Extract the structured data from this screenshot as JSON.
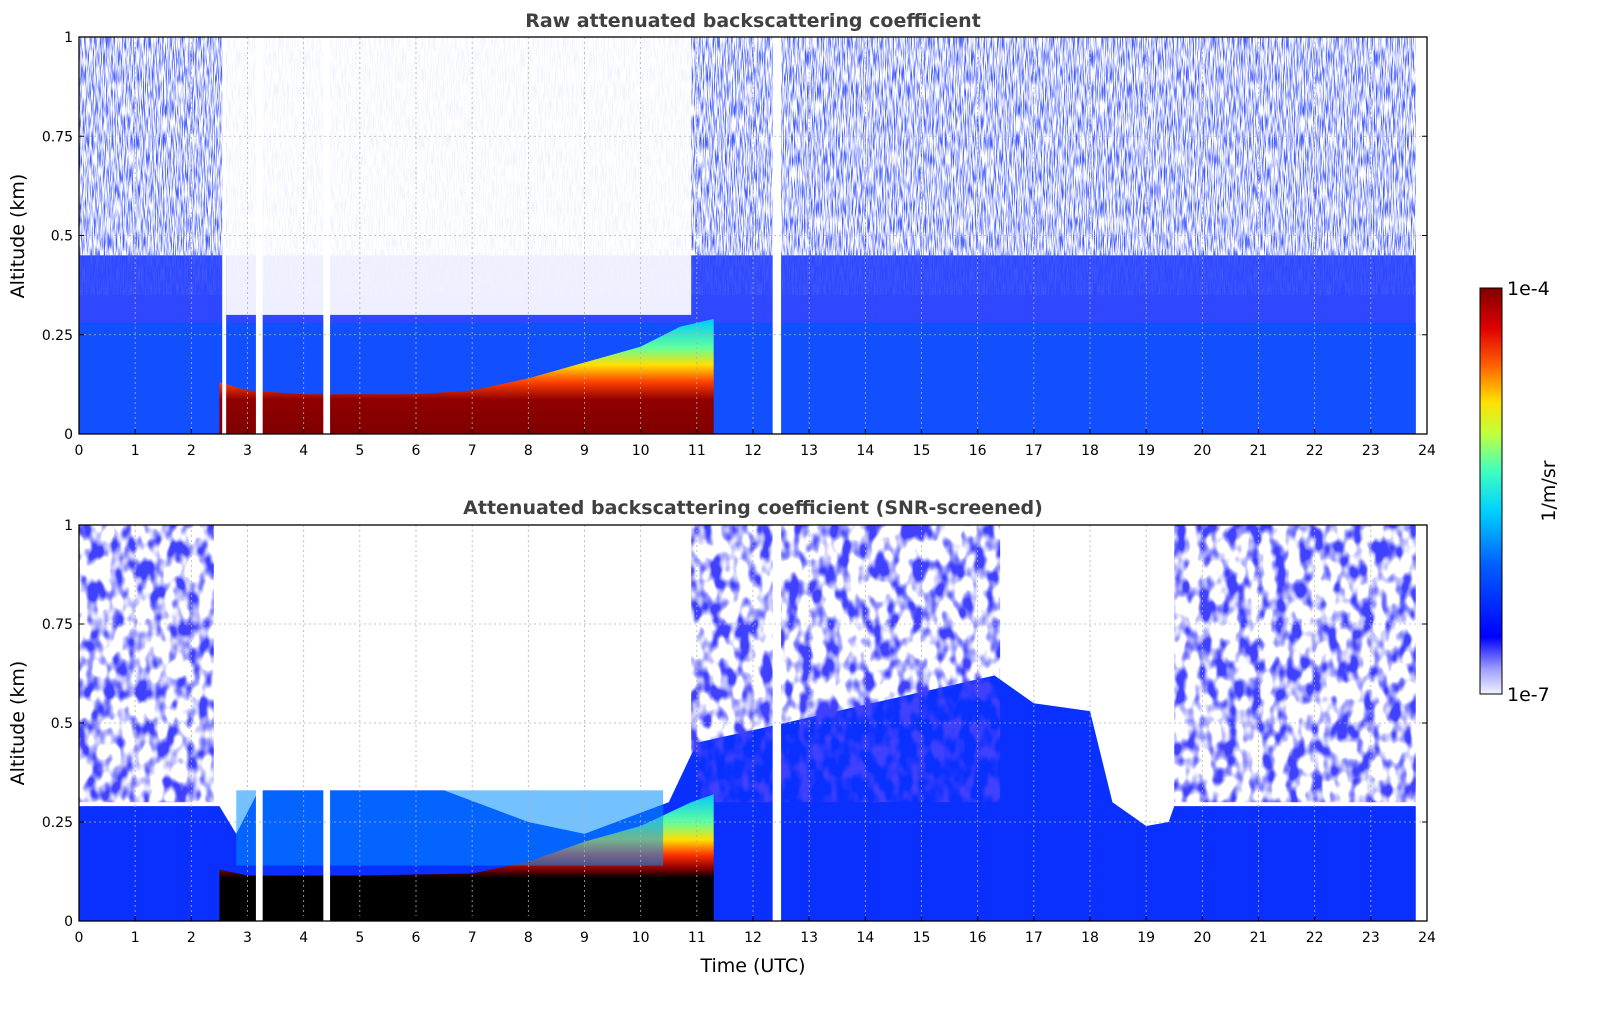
{
  "chart_data": [
    {
      "type": "heatmap",
      "title": "Raw attenuated backscattering coefficient",
      "xlabel": "",
      "ylabel": "Altitude (km)",
      "xlim": [
        0,
        24
      ],
      "ylim": [
        0,
        1
      ],
      "x_ticks": [
        "0",
        "1",
        "2",
        "3",
        "4",
        "5",
        "6",
        "7",
        "8",
        "9",
        "10",
        "11",
        "12",
        "13",
        "14",
        "15",
        "16",
        "17",
        "18",
        "19",
        "20",
        "21",
        "22",
        "23",
        "24"
      ],
      "y_ticks": [
        "0",
        "0.25",
        "0.5",
        "0.75",
        "1"
      ],
      "grid": true,
      "layer_top_km": [
        {
          "t": 2.5,
          "km": 0.13
        },
        {
          "t": 3.0,
          "km": 0.11
        },
        {
          "t": 4.0,
          "km": 0.1
        },
        {
          "t": 5.0,
          "km": 0.1
        },
        {
          "t": 6.0,
          "km": 0.1
        },
        {
          "t": 7.0,
          "km": 0.11
        },
        {
          "t": 8.0,
          "km": 0.14
        },
        {
          "t": 9.0,
          "km": 0.18
        },
        {
          "t": 10.0,
          "km": 0.22
        },
        {
          "t": 10.7,
          "km": 0.27
        },
        {
          "t": 11.3,
          "km": 0.29
        }
      ],
      "data_gaps_utc": [
        [
          2.55,
          2.62
        ],
        [
          3.15,
          3.27
        ],
        [
          4.35,
          4.47
        ],
        [
          12.35,
          12.5
        ]
      ]
    },
    {
      "type": "heatmap",
      "title": "Attenuated backscattering coefficient (SNR-screened)",
      "xlabel": "Time (UTC)",
      "ylabel": "Altitude (km)",
      "xlim": [
        0,
        24
      ],
      "ylim": [
        0,
        1
      ],
      "x_ticks": [
        "0",
        "1",
        "2",
        "3",
        "4",
        "5",
        "6",
        "7",
        "8",
        "9",
        "10",
        "11",
        "12",
        "13",
        "14",
        "15",
        "16",
        "17",
        "18",
        "19",
        "20",
        "21",
        "22",
        "23",
        "24"
      ],
      "y_ticks": [
        "0",
        "0.25",
        "0.5",
        "0.75",
        "1"
      ],
      "grid": true,
      "screened_top_km": [
        {
          "t": 0.0,
          "km": 0.29
        },
        {
          "t": 2.5,
          "km": 0.29
        },
        {
          "t": 2.8,
          "km": 0.22
        },
        {
          "t": 3.2,
          "km": 0.33
        },
        {
          "t": 6.5,
          "km": 0.33
        },
        {
          "t": 8.0,
          "km": 0.25
        },
        {
          "t": 9.0,
          "km": 0.22
        },
        {
          "t": 10.5,
          "km": 0.3
        },
        {
          "t": 11.0,
          "km": 0.45
        },
        {
          "t": 16.3,
          "km": 0.62
        },
        {
          "t": 17.0,
          "km": 0.55
        },
        {
          "t": 18.0,
          "km": 0.53
        },
        {
          "t": 18.4,
          "km": 0.3
        },
        {
          "t": 19.0,
          "km": 0.24
        },
        {
          "t": 19.4,
          "km": 0.25
        },
        {
          "t": 19.5,
          "km": 0.29
        },
        {
          "t": 23.8,
          "km": 0.29
        }
      ],
      "data_gaps_utc": [
        [
          3.15,
          3.27
        ],
        [
          4.35,
          4.47
        ],
        [
          12.35,
          12.5
        ]
      ]
    }
  ],
  "colorbar": {
    "label": "1/m/sr",
    "max_label": "1e-4",
    "min_label": "1e-7",
    "scale": "log",
    "colormap": "jet"
  }
}
